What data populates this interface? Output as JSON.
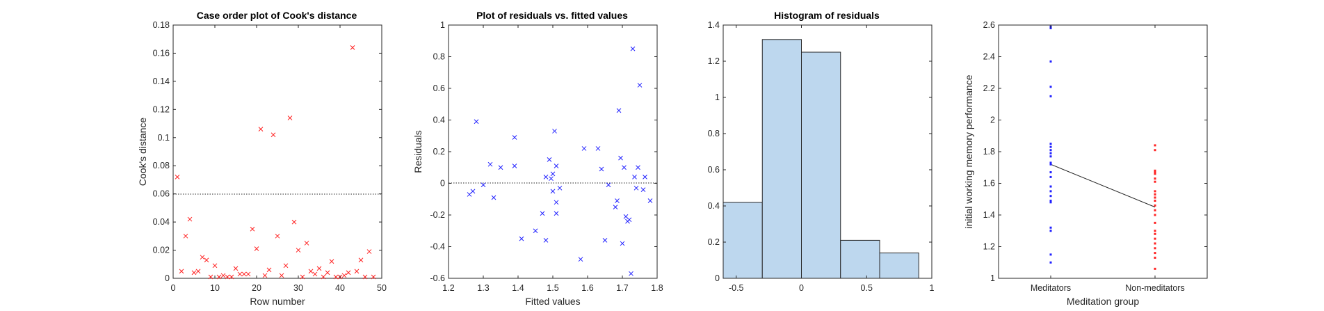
{
  "colors": {
    "cook_marker": "#ff2020",
    "residual_marker": "#2020ff",
    "hist_fill": "#bdd7ee",
    "hist_edge": "#262626",
    "meditators": "#2020ff",
    "non_meditators": "#ff2020"
  },
  "chart_data": [
    {
      "type": "scatter",
      "title": "Case order plot of Cook's distance",
      "xlabel": "Row number",
      "ylabel": "Cook's distance",
      "xlim": [
        0,
        50
      ],
      "ylim": [
        0,
        0.18
      ],
      "xticks": [
        "0",
        "10",
        "20",
        "30",
        "40",
        "50"
      ],
      "yticks": [
        "0",
        "0.02",
        "0.04",
        "0.06",
        "0.08",
        "0.1",
        "0.12",
        "0.14",
        "0.16",
        "0.18"
      ],
      "reference_line": {
        "y": 0.06,
        "style": "dotted"
      },
      "marker": "x",
      "x": [
        1,
        2,
        3,
        4,
        5,
        6,
        7,
        8,
        9,
        10,
        11,
        12,
        13,
        14,
        15,
        16,
        17,
        18,
        19,
        20,
        21,
        22,
        23,
        24,
        25,
        26,
        27,
        28,
        29,
        30,
        31,
        32,
        33,
        34,
        35,
        36,
        37,
        38,
        39,
        40,
        41,
        42,
        43,
        44,
        45,
        46,
        47,
        48
      ],
      "y": [
        0.072,
        0.005,
        0.03,
        0.042,
        0.004,
        0.005,
        0.015,
        0.013,
        0.001,
        0.009,
        0.001,
        0.002,
        0.001,
        0.001,
        0.007,
        0.003,
        0.003,
        0.003,
        0.035,
        0.021,
        0.106,
        0.002,
        0.006,
        0.102,
        0.03,
        0.002,
        0.009,
        0.114,
        0.04,
        0.02,
        0.001,
        0.025,
        0.005,
        0.003,
        0.007,
        0.001,
        0.004,
        0.012,
        0.001,
        0.001,
        0.002,
        0.004,
        0.164,
        0.005,
        0.013,
        0.001,
        0.019,
        0.001
      ],
      "grid": false
    },
    {
      "type": "scatter",
      "title": "Plot of residuals vs. fitted values",
      "xlabel": "Fitted values",
      "ylabel": "Residuals",
      "xlim": [
        1.2,
        1.8
      ],
      "ylim": [
        -0.6,
        1
      ],
      "xticks": [
        "1.2",
        "1.3",
        "1.4",
        "1.5",
        "1.6",
        "1.7",
        "1.8"
      ],
      "yticks": [
        "-0.6",
        "-0.4",
        "-0.2",
        "0",
        "0.2",
        "0.4",
        "0.6",
        "0.8",
        "1"
      ],
      "reference_line": {
        "y": 0,
        "style": "dotted"
      },
      "marker": "x",
      "x": [
        1.26,
        1.27,
        1.28,
        1.3,
        1.32,
        1.33,
        1.35,
        1.39,
        1.39,
        1.41,
        1.45,
        1.47,
        1.48,
        1.48,
        1.49,
        1.495,
        1.5,
        1.5,
        1.505,
        1.51,
        1.51,
        1.51,
        1.52,
        1.58,
        1.59,
        1.63,
        1.64,
        1.65,
        1.66,
        1.68,
        1.685,
        1.69,
        1.695,
        1.7,
        1.705,
        1.71,
        1.715,
        1.72,
        1.725,
        1.73,
        1.735,
        1.74,
        1.745,
        1.75,
        1.76,
        1.765,
        1.78
      ],
      "y": [
        -0.07,
        -0.05,
        0.39,
        -0.01,
        0.12,
        -0.09,
        0.1,
        0.29,
        0.11,
        -0.35,
        -0.3,
        -0.19,
        0.04,
        -0.36,
        0.15,
        0.03,
        -0.05,
        0.06,
        0.33,
        -0.12,
        -0.19,
        0.11,
        -0.03,
        -0.48,
        0.22,
        0.22,
        0.09,
        -0.36,
        -0.01,
        -0.15,
        -0.11,
        0.46,
        0.16,
        -0.38,
        0.1,
        -0.21,
        -0.24,
        -0.23,
        -0.57,
        0.85,
        0.04,
        -0.03,
        0.1,
        0.62,
        -0.04,
        0.04,
        -0.11
      ],
      "grid": false
    },
    {
      "type": "bar",
      "title": "Histogram of residuals",
      "xlabel": "",
      "ylabel": "",
      "xlim": [
        -0.6,
        1
      ],
      "ylim": [
        0,
        1.4
      ],
      "xticks": [
        "-0.5",
        "0",
        "0.5",
        "1"
      ],
      "yticks": [
        "0",
        "0.2",
        "0.4",
        "0.6",
        "0.8",
        "1",
        "1.2",
        "1.4"
      ],
      "bin_edges": [
        -0.6,
        -0.3,
        0,
        0.3,
        0.6,
        0.9
      ],
      "values": [
        0.42,
        1.32,
        1.25,
        0.21,
        0.14
      ],
      "grid": false
    },
    {
      "type": "scatter",
      "title": "",
      "xlabel": "Meditation group",
      "ylabel": "initial working memory performance",
      "categories": [
        "Meditators",
        "Non-meditators"
      ],
      "ylim": [
        1,
        2.6
      ],
      "yticks": [
        "1",
        "1.2",
        "1.4",
        "1.6",
        "1.8",
        "2",
        "2.2",
        "2.4",
        "2.6"
      ],
      "mean_line": [
        1.72,
        1.45
      ],
      "series": [
        {
          "category": "Meditators",
          "values": [
            2.59,
            2.58,
            2.37,
            2.21,
            2.15,
            1.85,
            1.83,
            1.81,
            1.79,
            1.77,
            1.73,
            1.72,
            1.67,
            1.64,
            1.58,
            1.55,
            1.52,
            1.49,
            1.48,
            1.32,
            1.3,
            1.15,
            1.1
          ]
        },
        {
          "category": "Non-meditators",
          "values": [
            1.84,
            1.81,
            1.68,
            1.67,
            1.66,
            1.63,
            1.61,
            1.55,
            1.53,
            1.51,
            1.49,
            1.46,
            1.43,
            1.4,
            1.35,
            1.3,
            1.28,
            1.25,
            1.22,
            1.19,
            1.16,
            1.13,
            1.06
          ]
        }
      ],
      "grid": false
    }
  ]
}
